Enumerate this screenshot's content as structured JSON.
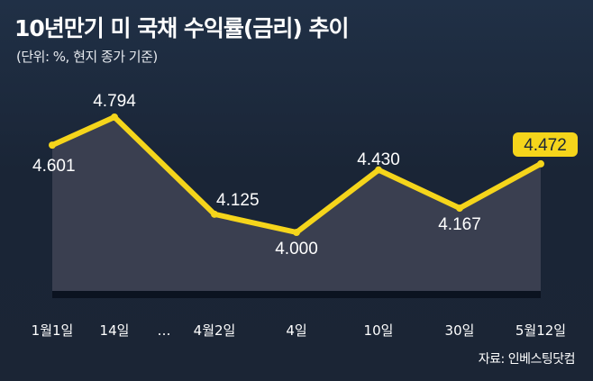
{
  "title": "10년만기 미 국채 수익률(금리) 추이",
  "subtitle": "(단위: %, 현지 종가 기준)",
  "source": "자료: 인베스팅닷컴",
  "colors": {
    "background": "#1b2637",
    "line": "#f5d51b",
    "area": "#3a3f50",
    "baseline": "#0b1320",
    "highlight_box": "#f5d51b"
  },
  "chart_data": {
    "type": "area",
    "categories": [
      "1월1일",
      "14일",
      "…",
      "4월2일",
      "4일",
      "10일",
      "30일",
      "5월12일"
    ],
    "points": [
      {
        "category": "1월1일",
        "value": 4.601,
        "label": "4.601"
      },
      {
        "category": "14일",
        "value": 4.794,
        "label": "4.794"
      },
      {
        "category": "4월2일",
        "value": 4.125,
        "label": "4.125"
      },
      {
        "category": "4일",
        "value": 4.0,
        "label": "4.000"
      },
      {
        "category": "10일",
        "value": 4.43,
        "label": "4.430"
      },
      {
        "category": "30일",
        "value": 4.167,
        "label": "4.167"
      },
      {
        "category": "5월12일",
        "value": 4.472,
        "label": "4.472",
        "highlight": true
      }
    ],
    "title": "10년만기 미 국채 수익률(금리) 추이",
    "xlabel": "",
    "ylabel": "",
    "grid": false,
    "legend": "none"
  }
}
